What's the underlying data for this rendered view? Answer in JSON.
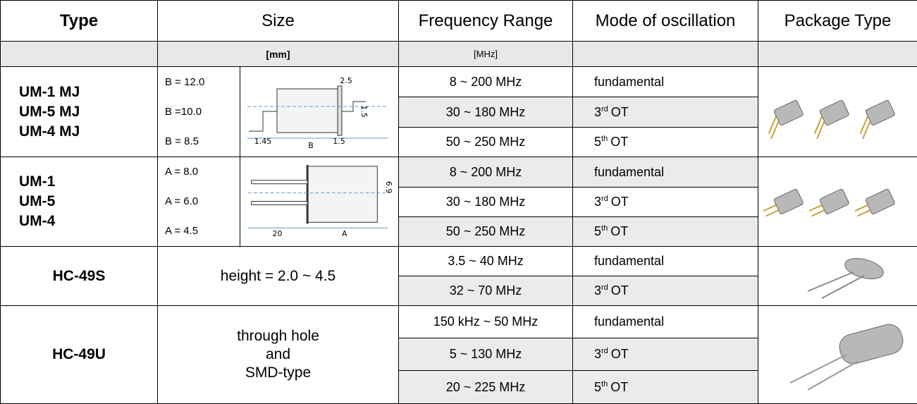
{
  "header": {
    "type": "Type",
    "size": "Size",
    "frequency": "Frequency Range",
    "mode": "Mode of oscillation",
    "package": "Package Type"
  },
  "units": {
    "size": "[mm]",
    "frequency": "[MHz]"
  },
  "groups": [
    {
      "types": [
        "UM-1 MJ",
        "UM-5 MJ",
        "UM-4 MJ"
      ],
      "sizes": [
        "B = 12.0",
        "B =10.0",
        "B = 8.5"
      ],
      "diagram": [
        "2.5",
        "1.5",
        "1.45",
        "B",
        "1.5"
      ],
      "rows": [
        {
          "frequency": "8 ~ 200 MHz",
          "mode": {
            "base": "fundamental"
          }
        },
        {
          "frequency": "30 ~ 180 MHz",
          "mode": {
            "base": "3",
            "sup": "rd",
            "rest": "OT"
          }
        },
        {
          "frequency": "50 ~ 250 MHz",
          "mode": {
            "base": "5",
            "sup": "th",
            "rest": "OT"
          }
        }
      ]
    },
    {
      "types": [
        "UM-1",
        "UM-5",
        "UM-4"
      ],
      "sizes": [
        "A = 8.0",
        "A = 6.0",
        "A = 4.5"
      ],
      "diagram": [
        "6.9",
        "20",
        "A"
      ],
      "rows": [
        {
          "frequency": "8 ~ 200 MHz",
          "mode": {
            "base": "fundamental"
          }
        },
        {
          "frequency": "30 ~ 180 MHz",
          "mode": {
            "base": "3",
            "sup": "rd",
            "rest": "OT"
          }
        },
        {
          "frequency": "50 ~ 250 MHz",
          "mode": {
            "base": "5",
            "sup": "th",
            "rest": "OT"
          }
        }
      ]
    },
    {
      "types": [
        "HC-49S"
      ],
      "size_text": [
        "height = 2.0 ~ 4.5"
      ],
      "rows": [
        {
          "frequency": "3.5 ~ 40 MHz",
          "mode": {
            "base": "fundamental"
          }
        },
        {
          "frequency": "32 ~ 70 MHz",
          "mode": {
            "base": "3",
            "sup": "rd",
            "rest": "OT"
          }
        }
      ]
    },
    {
      "types": [
        "HC-49U"
      ],
      "size_text": [
        "through hole",
        "and",
        "SMD-type"
      ],
      "rows": [
        {
          "frequency": "150 kHz ~ 50 MHz",
          "mode": {
            "base": "fundamental"
          }
        },
        {
          "frequency": "5 ~ 130 MHz",
          "mode": {
            "base": "3",
            "sup": "rd",
            "rest": "OT"
          }
        },
        {
          "frequency": "20 ~ 225 MHz",
          "mode": {
            "base": "5",
            "sup": "th",
            "rest": "OT"
          }
        }
      ]
    }
  ]
}
